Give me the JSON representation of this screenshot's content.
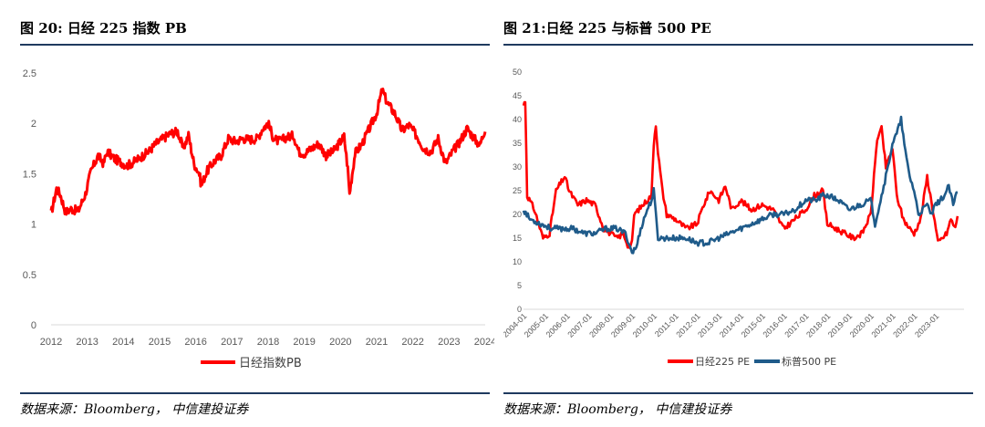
{
  "figures": {
    "left": {
      "title": "图 20:  日经 225 指数 PB",
      "source": "数据来源：Bloomberg， 中信建投证券"
    },
    "right": {
      "title": "图 21:日经 225 与标普 500 PE",
      "source": "数据来源：Bloomberg， 中信建投证券"
    }
  },
  "colors": {
    "red": "#ff0000",
    "blue": "#1f5b8a",
    "axis": "#d9d9d9",
    "rule": "#1f3a5f"
  },
  "chart_data": [
    {
      "type": "line",
      "title": "日经225指数PB",
      "xlabel": "",
      "ylabel": "",
      "ylim": [
        0,
        2.5
      ],
      "yticks": [
        "0",
        "0.5",
        "1",
        "1.5",
        "2",
        "2.5"
      ],
      "xticks": [
        "2012",
        "2013",
        "2014",
        "2015",
        "2016",
        "2017",
        "2018",
        "2019",
        "2020",
        "2021",
        "2022",
        "2023",
        "2024"
      ],
      "legend": [
        "日经指数PB"
      ],
      "series": [
        {
          "name": "日经指数PB",
          "x": [
            2012.0,
            2012.15,
            2012.25,
            2012.4,
            2012.55,
            2012.75,
            2012.95,
            2013.1,
            2013.3,
            2013.45,
            2013.55,
            2013.75,
            2013.9,
            2014.1,
            2014.3,
            2014.5,
            2014.7,
            2014.9,
            2015.1,
            2015.3,
            2015.5,
            2015.65,
            2015.8,
            2015.95,
            2016.1,
            2016.15,
            2016.3,
            2016.5,
            2016.7,
            2016.9,
            2017.1,
            2017.3,
            2017.5,
            2017.7,
            2017.85,
            2018.0,
            2018.15,
            2018.3,
            2018.5,
            2018.7,
            2018.85,
            2019.0,
            2019.2,
            2019.4,
            2019.6,
            2019.8,
            2020.0,
            2020.1,
            2020.2,
            2020.25,
            2020.4,
            2020.6,
            2020.8,
            2021.0,
            2021.15,
            2021.3,
            2021.5,
            2021.7,
            2021.9,
            2022.1,
            2022.3,
            2022.5,
            2022.7,
            2022.9,
            2023.1,
            2023.3,
            2023.5,
            2023.7,
            2023.85,
            2024.0
          ],
          "values": [
            1.1,
            1.35,
            1.3,
            1.12,
            1.15,
            1.13,
            1.3,
            1.52,
            1.68,
            1.6,
            1.72,
            1.65,
            1.62,
            1.58,
            1.62,
            1.67,
            1.72,
            1.8,
            1.85,
            1.9,
            1.92,
            1.75,
            1.88,
            1.6,
            1.5,
            1.38,
            1.52,
            1.62,
            1.68,
            1.85,
            1.82,
            1.85,
            1.84,
            1.85,
            1.95,
            2.0,
            1.85,
            1.82,
            1.86,
            1.88,
            1.72,
            1.7,
            1.75,
            1.8,
            1.68,
            1.72,
            1.82,
            1.87,
            1.55,
            1.3,
            1.7,
            1.8,
            1.95,
            2.1,
            2.33,
            2.2,
            2.1,
            1.93,
            1.98,
            1.88,
            1.75,
            1.72,
            1.85,
            1.6,
            1.72,
            1.82,
            1.95,
            1.85,
            1.78,
            1.95
          ]
        }
      ]
    },
    {
      "type": "line",
      "title": "日经225与标普500 PE",
      "xlabel": "",
      "ylabel": "",
      "ylim": [
        0,
        50
      ],
      "yticks": [
        "0",
        "5",
        "10",
        "15",
        "20",
        "25",
        "30",
        "35",
        "40",
        "45",
        "50"
      ],
      "xticks": [
        "2004-01",
        "2005-01",
        "2006-01",
        "2007-01",
        "2008-01",
        "2009-01",
        "2010-01",
        "2011-01",
        "2012-01",
        "2013-01",
        "2014-01",
        "2015-01",
        "2016-01",
        "2017-01",
        "2018-01",
        "2019-01",
        "2020-01",
        "2021-01",
        "2022-01",
        "2023-01"
      ],
      "legend": [
        "日经225 PE",
        "标普500 PE"
      ],
      "series": [
        {
          "name": "日经225 PE",
          "x": [
            2004.0,
            2004.08,
            2004.17,
            2004.5,
            2004.9,
            2005.2,
            2005.5,
            2005.9,
            2006.1,
            2006.5,
            2006.9,
            2007.3,
            2007.7,
            2008.0,
            2008.3,
            2008.6,
            2008.85,
            2009.0,
            2009.1,
            2009.5,
            2009.9,
            2010.0,
            2010.1,
            2010.2,
            2010.4,
            2010.6,
            2011.0,
            2011.5,
            2012.0,
            2012.3,
            2012.6,
            2013.0,
            2013.3,
            2013.6,
            2014.0,
            2014.5,
            2015.0,
            2015.5,
            2016.0,
            2016.5,
            2017.0,
            2017.4,
            2017.8,
            2018.0,
            2018.4,
            2018.8,
            2019.2,
            2019.6,
            2020.0,
            2020.3,
            2020.5,
            2020.7,
            2021.0,
            2021.2,
            2021.5,
            2021.8,
            2022.0,
            2022.3,
            2022.6,
            2022.9,
            2023.1,
            2023.3,
            2023.5,
            2023.7,
            2023.9,
            2024.0
          ],
          "values": [
            43,
            44,
            24,
            21,
            15,
            16,
            25,
            28,
            25,
            22,
            23,
            22,
            17,
            16,
            15,
            16,
            13,
            14,
            20,
            22,
            24,
            35,
            39,
            33,
            25,
            20,
            19,
            17,
            18,
            22,
            25,
            23,
            26,
            21,
            23,
            21,
            22,
            21,
            17,
            19,
            21,
            24,
            25,
            18,
            17,
            16,
            15,
            16,
            20,
            36,
            38,
            30,
            34,
            24,
            19,
            17,
            16,
            19,
            28,
            20,
            14,
            15,
            16,
            19,
            17,
            20
          ]
        },
        {
          "name": "标普500 PE",
          "x": [
            2004.0,
            2004.3,
            2004.8,
            2005.3,
            2005.8,
            2006.3,
            2006.8,
            2007.3,
            2007.8,
            2008.3,
            2008.7,
            2009.0,
            2009.2,
            2009.4,
            2009.7,
            2009.9,
            2010.0,
            2010.2,
            2010.5,
            2011.0,
            2011.5,
            2012.0,
            2012.5,
            2013.0,
            2013.5,
            2014.0,
            2014.5,
            2015.0,
            2015.5,
            2016.0,
            2016.5,
            2017.0,
            2017.5,
            2017.8,
            2018.0,
            2018.5,
            2019.0,
            2019.5,
            2020.0,
            2020.2,
            2020.4,
            2020.6,
            2020.8,
            2021.0,
            2021.2,
            2021.4,
            2021.6,
            2021.8,
            2022.0,
            2022.2,
            2022.4,
            2022.6,
            2022.8,
            2023.0,
            2023.2,
            2023.4,
            2023.6,
            2023.8,
            2024.0
          ],
          "values": [
            21,
            19,
            18,
            17,
            17,
            17,
            16,
            16,
            17,
            17,
            16,
            12,
            13,
            17,
            21,
            23,
            25,
            15,
            15,
            15,
            15,
            14,
            14,
            15,
            16,
            17,
            18,
            19,
            20,
            20,
            21,
            23,
            23,
            24,
            24,
            23,
            21,
            22,
            23,
            18,
            22,
            26,
            30,
            35,
            37,
            40,
            33,
            28,
            25,
            20,
            21,
            22,
            20,
            22,
            23,
            24,
            26,
            22,
            25
          ]
        }
      ]
    }
  ]
}
